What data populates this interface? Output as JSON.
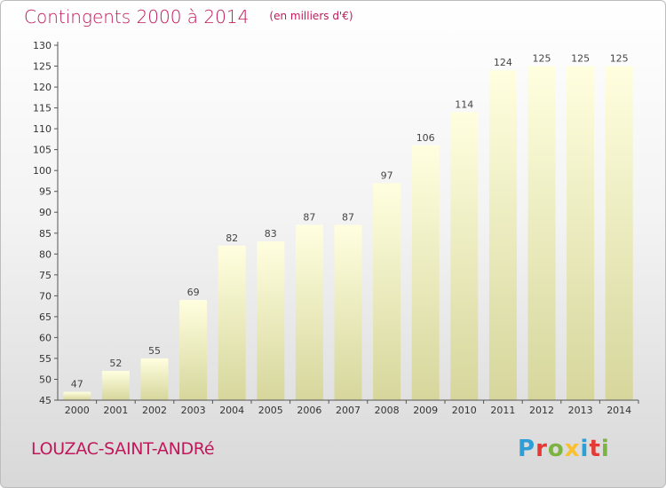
{
  "chart": {
    "title": "Contingents 2000 à 2014",
    "unit": "(en milliers d'€)"
  },
  "footer": {
    "commune": "LOUZAC-SAINT-ANDRé"
  },
  "brand": {
    "letters": [
      "P",
      "r",
      "o",
      "x",
      "i",
      "t",
      "i"
    ],
    "colors": [
      "#2e9ed6",
      "#e53935",
      "#7cb342",
      "#fbc02d",
      "#2e9ed6",
      "#e53935",
      "#7cb342"
    ]
  },
  "colors": {
    "title": "#c2185b",
    "bar_top": "#ffffe0",
    "bar_bottom": "#d6d69c",
    "axis": "#555555"
  },
  "chart_data": {
    "type": "bar",
    "title": "Contingents 2000 à 2014",
    "subtitle": "(en milliers d'€)",
    "categories": [
      "2000",
      "2001",
      "2002",
      "2003",
      "2004",
      "2005",
      "2006",
      "2007",
      "2008",
      "2009",
      "2010",
      "2011",
      "2012",
      "2013",
      "2014"
    ],
    "values": [
      47,
      52,
      55,
      69,
      82,
      83,
      87,
      87,
      97,
      106,
      114,
      124,
      125,
      125,
      125
    ],
    "ylim": [
      45,
      130
    ],
    "yticks": [
      45,
      50,
      55,
      60,
      65,
      70,
      75,
      80,
      85,
      90,
      95,
      100,
      105,
      110,
      115,
      120,
      125,
      130
    ],
    "grid": false,
    "legend": "none"
  }
}
